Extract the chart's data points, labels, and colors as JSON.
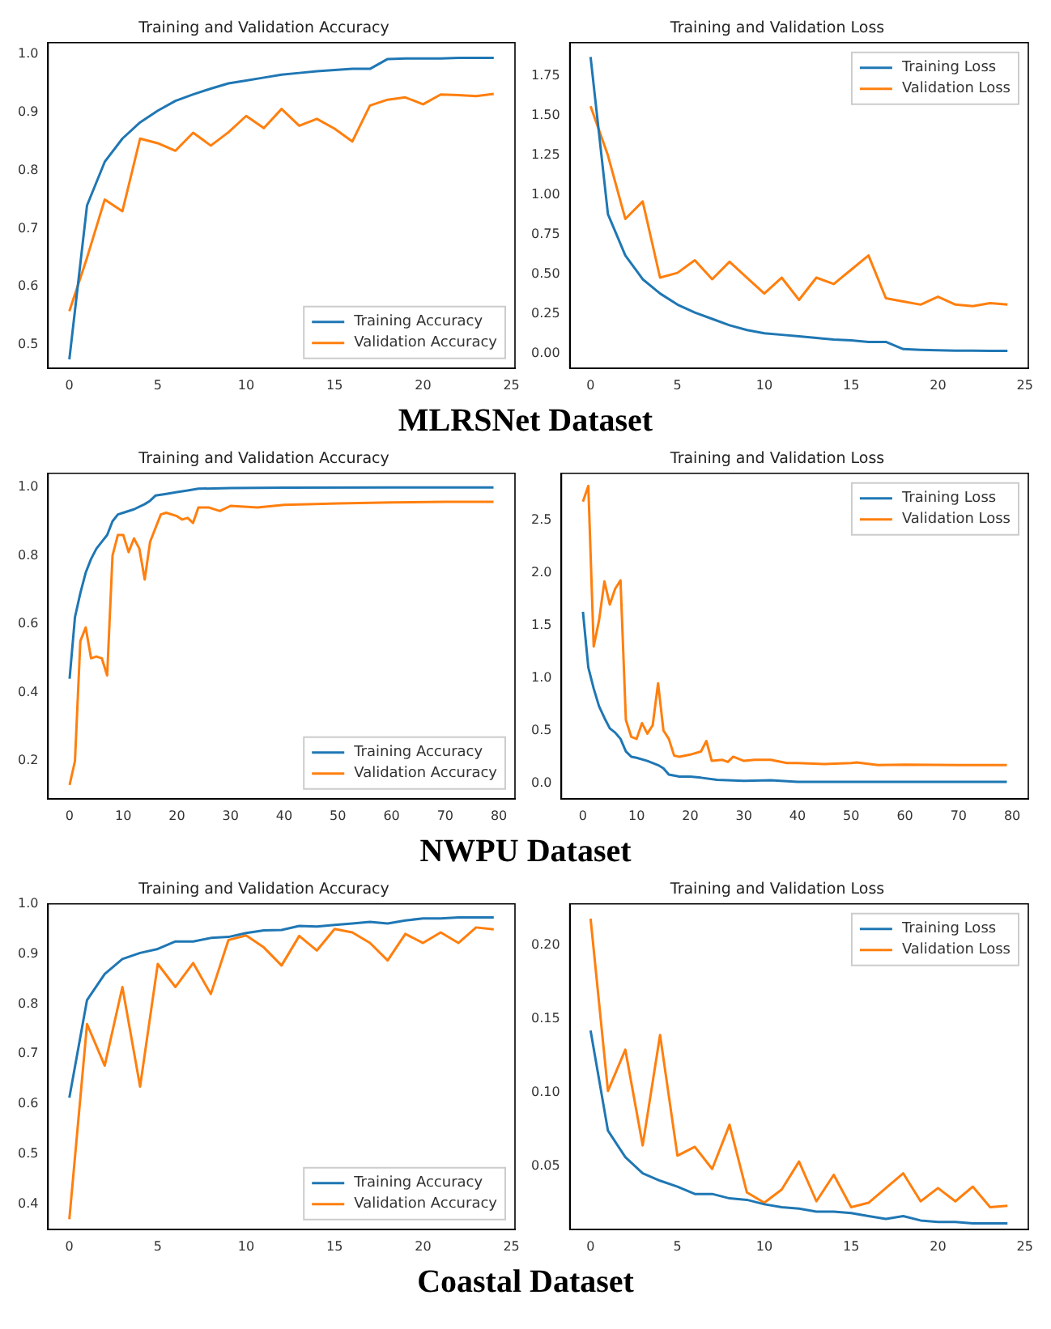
{
  "chart_data": [
    {
      "type": "line",
      "title": "Training and Validation Accuracy",
      "annotations": [
        "MLRSNet Dataset"
      ],
      "legend": "bottom right",
      "grid": false,
      "xlim": [
        -1.2,
        25.2
      ],
      "xticks": [
        0,
        5,
        10,
        15,
        20,
        25
      ],
      "ylim": [
        0.46,
        1.02
      ],
      "yticks": [
        0.5,
        0.6,
        0.7,
        0.8,
        0.9,
        {
          "value": 1,
          "label": "1.0"
        }
      ],
      "x": [
        0,
        1,
        2,
        3,
        4,
        5,
        6,
        7,
        8,
        9,
        10,
        11,
        12,
        13,
        14,
        15,
        16,
        17,
        18,
        19,
        20,
        21,
        22,
        23,
        24
      ],
      "series": [
        {
          "name": "Training Accuracy",
          "color": "#1f77b4",
          "values": [
            0.475,
            0.74,
            0.815,
            0.855,
            0.883,
            0.903,
            0.92,
            0.931,
            0.941,
            0.95,
            0.955,
            0.96,
            0.965,
            0.968,
            0.971,
            0.973,
            0.975,
            0.975,
            0.992,
            0.993,
            0.993,
            0.993,
            0.994,
            0.994,
            0.994
          ]
        },
        {
          "name": "Validation Accuracy",
          "color": "#ff7f0e",
          "values": [
            0.558,
            0.65,
            0.75,
            0.73,
            0.855,
            0.847,
            0.834,
            0.865,
            0.843,
            0.866,
            0.894,
            0.873,
            0.906,
            0.877,
            0.889,
            0.872,
            0.85,
            0.912,
            0.922,
            0.926,
            0.914,
            0.931,
            0.93,
            0.928,
            0.932
          ]
        }
      ]
    },
    {
      "type": "line",
      "title": "Training and Validation Loss",
      "legend": "top right",
      "grid": false,
      "xlim": [
        -1.2,
        25.2
      ],
      "xticks": [
        0,
        5,
        10,
        15,
        20,
        25
      ],
      "ylim": [
        -0.09,
        1.96
      ],
      "yticks": [
        {
          "value": 0,
          "label": "0.00"
        },
        0.25,
        {
          "value": 0.5,
          "label": "0.50"
        },
        0.75,
        {
          "value": 1,
          "label": "1.00"
        },
        1.25,
        {
          "value": 1.5,
          "label": "1.50"
        },
        1.75
      ],
      "x": [
        0,
        1,
        2,
        3,
        4,
        5,
        6,
        7,
        8,
        9,
        10,
        11,
        12,
        13,
        14,
        15,
        16,
        17,
        18,
        19,
        20,
        21,
        22,
        23,
        24
      ],
      "series": [
        {
          "name": "Training Loss",
          "color": "#1f77b4",
          "values": [
            1.87,
            0.88,
            0.62,
            0.47,
            0.38,
            0.31,
            0.26,
            0.22,
            0.18,
            0.15,
            0.13,
            0.12,
            0.11,
            0.1,
            0.09,
            0.085,
            0.075,
            0.075,
            0.03,
            0.025,
            0.022,
            0.02,
            0.02,
            0.018,
            0.018
          ]
        },
        {
          "name": "Validation Loss",
          "color": "#ff7f0e",
          "values": [
            1.56,
            1.25,
            0.85,
            0.96,
            0.48,
            0.51,
            0.59,
            0.47,
            0.58,
            0.48,
            0.38,
            0.48,
            0.34,
            0.48,
            0.44,
            0.53,
            0.62,
            0.35,
            0.33,
            0.31,
            0.36,
            0.31,
            0.3,
            0.32,
            0.31
          ]
        }
      ]
    },
    {
      "type": "line",
      "title": "Training and Validation Accuracy",
      "annotations": [
        "NWPU Dataset"
      ],
      "legend": "bottom right",
      "grid": false,
      "xlim": [
        -4,
        83
      ],
      "xticks": [
        0,
        10,
        20,
        30,
        40,
        50,
        60,
        70,
        80
      ],
      "ylim": [
        0.09,
        1.04
      ],
      "yticks": [
        0.2,
        0.4,
        0.6,
        0.8,
        {
          "value": 1,
          "label": "1.0"
        }
      ],
      "series": [
        {
          "name": "Training Accuracy",
          "color": "#1f77b4",
          "x": [
            0,
            1,
            2,
            3,
            4,
            5,
            6,
            7,
            8,
            9,
            10,
            12,
            14,
            15,
            16,
            18,
            20,
            22,
            24,
            30,
            40,
            60,
            79
          ],
          "values": [
            0.44,
            0.62,
            0.69,
            0.75,
            0.79,
            0.82,
            0.84,
            0.86,
            0.9,
            0.92,
            0.925,
            0.935,
            0.95,
            0.96,
            0.975,
            0.98,
            0.985,
            0.99,
            0.995,
            0.997,
            0.998,
            0.999,
            0.999
          ]
        },
        {
          "name": "Validation Accuracy",
          "color": "#ff7f0e",
          "x": [
            0,
            1,
            2,
            3,
            4,
            5,
            6,
            7,
            8,
            9,
            10,
            11,
            12,
            13,
            14,
            15,
            16,
            17,
            18,
            20,
            21,
            22,
            23,
            24,
            26,
            28,
            30,
            35,
            40,
            50,
            60,
            70,
            79
          ],
          "values": [
            0.13,
            0.2,
            0.55,
            0.59,
            0.5,
            0.505,
            0.5,
            0.45,
            0.8,
            0.86,
            0.86,
            0.81,
            0.85,
            0.82,
            0.73,
            0.84,
            0.88,
            0.92,
            0.925,
            0.915,
            0.905,
            0.91,
            0.895,
            0.94,
            0.94,
            0.93,
            0.945,
            0.94,
            0.948,
            0.952,
            0.955,
            0.957,
            0.957
          ]
        }
      ]
    },
    {
      "type": "line",
      "title": "Training and Validation Loss",
      "legend": "top right",
      "grid": false,
      "xlim": [
        -4,
        83
      ],
      "xticks": [
        0,
        10,
        20,
        30,
        40,
        50,
        60,
        70,
        80
      ],
      "ylim": [
        -0.15,
        2.95
      ],
      "yticks": [
        {
          "value": 0,
          "label": "0.0"
        },
        0.5,
        {
          "value": 1,
          "label": "1.0"
        },
        1.5,
        {
          "value": 2,
          "label": "2.0"
        },
        2.5
      ],
      "series": [
        {
          "name": "Training Loss",
          "color": "#1f77b4",
          "x": [
            0,
            1,
            2,
            3,
            4,
            5,
            6,
            7,
            8,
            9,
            10,
            12,
            14,
            15,
            16,
            18,
            20,
            22,
            25,
            30,
            35,
            40,
            50,
            79
          ],
          "values": [
            1.63,
            1.1,
            0.9,
            0.73,
            0.62,
            0.52,
            0.48,
            0.42,
            0.3,
            0.25,
            0.24,
            0.21,
            0.17,
            0.14,
            0.08,
            0.06,
            0.06,
            0.05,
            0.03,
            0.02,
            0.025,
            0.01,
            0.01,
            0.01
          ]
        },
        {
          "name": "Validation Loss",
          "color": "#ff7f0e",
          "x": [
            0,
            1,
            2,
            3,
            4,
            5,
            6,
            7,
            8,
            9,
            10,
            11,
            12,
            13,
            14,
            15,
            16,
            17,
            18,
            20,
            22,
            23,
            24,
            26,
            27,
            28,
            30,
            32,
            35,
            38,
            40,
            45,
            50,
            51,
            55,
            60,
            70,
            79
          ],
          "values": [
            2.68,
            2.83,
            1.3,
            1.55,
            1.92,
            1.7,
            1.85,
            1.93,
            0.6,
            0.44,
            0.42,
            0.57,
            0.47,
            0.55,
            0.95,
            0.5,
            0.42,
            0.26,
            0.25,
            0.27,
            0.3,
            0.4,
            0.21,
            0.22,
            0.2,
            0.25,
            0.21,
            0.22,
            0.22,
            0.19,
            0.19,
            0.18,
            0.19,
            0.195,
            0.17,
            0.175,
            0.17,
            0.17
          ]
        }
      ]
    },
    {
      "type": "line",
      "title": "Training and Validation Accuracy",
      "annotations": [
        "Coastal Dataset"
      ],
      "legend": "bottom right",
      "grid": false,
      "xlim": [
        -1.2,
        25.2
      ],
      "xticks": [
        0,
        5,
        10,
        15,
        20,
        25
      ],
      "ylim": [
        0.35,
        1.0
      ],
      "yticks": [
        0.4,
        0.5,
        0.6,
        0.7,
        0.8,
        0.9,
        {
          "value": 1,
          "label": "1.0"
        }
      ],
      "x": [
        0,
        1,
        2,
        3,
        4,
        5,
        6,
        7,
        8,
        9,
        10,
        11,
        12,
        13,
        14,
        15,
        16,
        17,
        18,
        19,
        20,
        21,
        22,
        23,
        24
      ],
      "series": [
        {
          "name": "Training Accuracy",
          "color": "#1f77b4",
          "values": [
            0.613,
            0.808,
            0.86,
            0.89,
            0.902,
            0.91,
            0.925,
            0.925,
            0.932,
            0.934,
            0.942,
            0.947,
            0.948,
            0.956,
            0.955,
            0.958,
            0.961,
            0.964,
            0.961,
            0.967,
            0.971,
            0.971,
            0.973,
            0.973,
            0.973
          ]
        },
        {
          "name": "Validation Accuracy",
          "color": "#ff7f0e",
          "values": [
            0.37,
            0.76,
            0.677,
            0.834,
            0.635,
            0.88,
            0.834,
            0.882,
            0.82,
            0.928,
            0.937,
            0.913,
            0.877,
            0.936,
            0.907,
            0.95,
            0.943,
            0.922,
            0.887,
            0.94,
            0.922,
            0.943,
            0.922,
            0.953,
            0.949
          ]
        }
      ]
    },
    {
      "type": "line",
      "title": "Training and Validation Loss",
      "legend": "top right",
      "grid": false,
      "xlim": [
        -1.2,
        25.2
      ],
      "xticks": [
        0,
        5,
        10,
        15,
        20,
        25
      ],
      "ylim": [
        0.007,
        0.228
      ],
      "yticks": [
        0.05,
        {
          "value": 0.1,
          "label": "0.10"
        },
        0.15,
        {
          "value": 0.2,
          "label": "0.20"
        }
      ],
      "x": [
        0,
        1,
        2,
        3,
        4,
        5,
        6,
        7,
        8,
        9,
        10,
        11,
        12,
        13,
        14,
        15,
        16,
        17,
        18,
        19,
        20,
        21,
        22,
        23,
        24
      ],
      "series": [
        {
          "name": "Training Loss",
          "color": "#1f77b4",
          "values": [
            0.142,
            0.074,
            0.056,
            0.045,
            0.04,
            0.036,
            0.031,
            0.031,
            0.028,
            0.027,
            0.024,
            0.022,
            0.021,
            0.019,
            0.019,
            0.018,
            0.016,
            0.014,
            0.016,
            0.013,
            0.012,
            0.012,
            0.011,
            0.011,
            0.011
          ]
        },
        {
          "name": "Validation Loss",
          "color": "#ff7f0e",
          "values": [
            0.218,
            0.101,
            0.129,
            0.064,
            0.139,
            0.057,
            0.063,
            0.048,
            0.078,
            0.032,
            0.025,
            0.034,
            0.053,
            0.026,
            0.044,
            0.022,
            0.025,
            0.035,
            0.045,
            0.026,
            0.035,
            0.026,
            0.036,
            0.022,
            0.023
          ]
        }
      ]
    }
  ]
}
